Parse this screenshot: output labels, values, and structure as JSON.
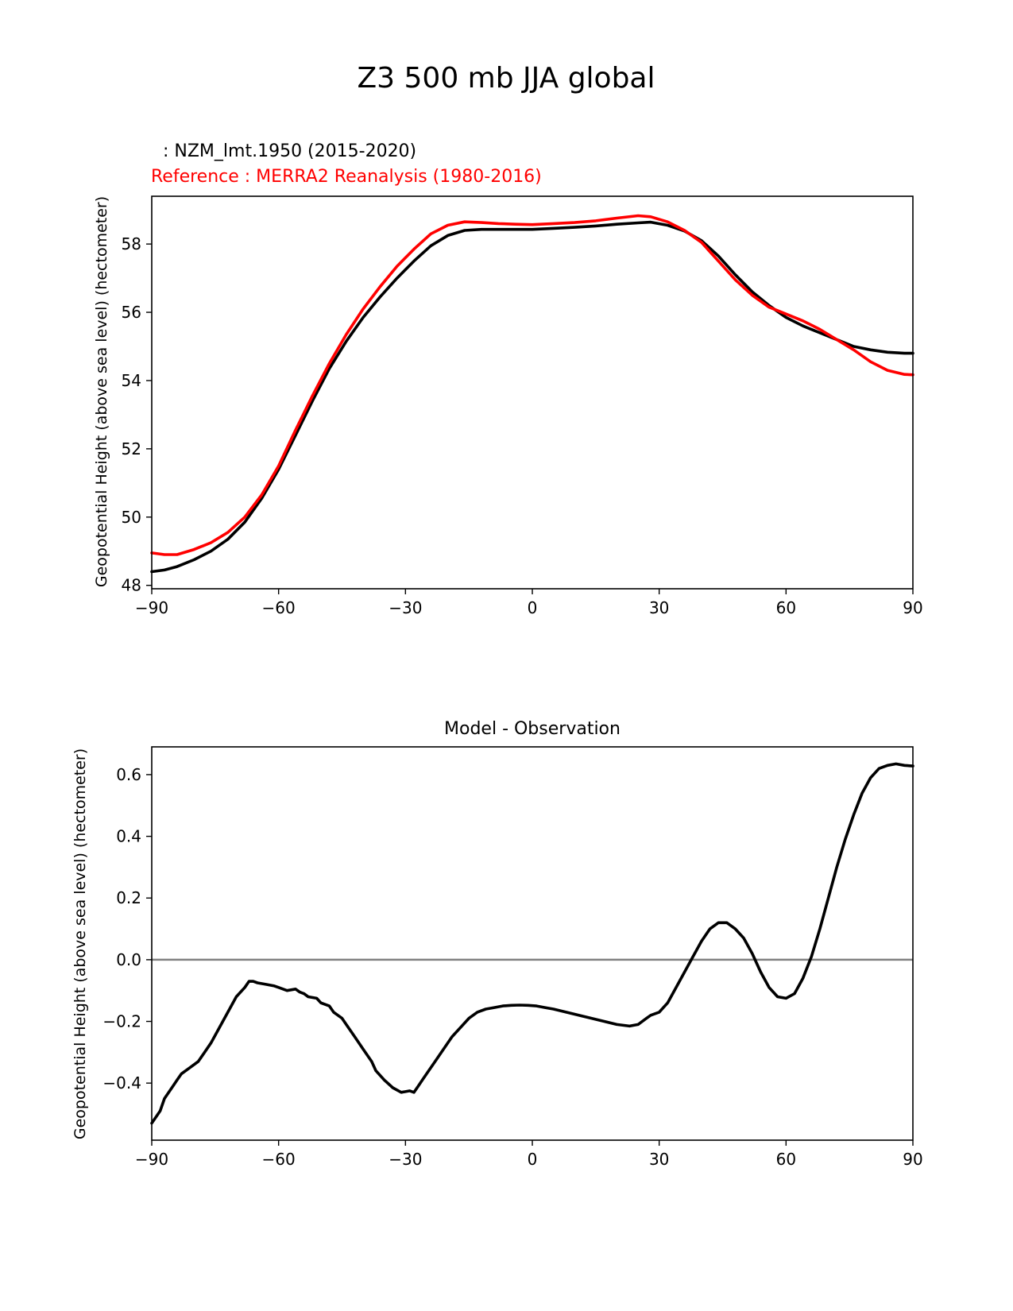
{
  "figure": {
    "suptitle": "Z3 500 mb JJA global"
  },
  "chart_data": [
    {
      "type": "line",
      "test_label": ": NZM_lmt.1950 (2015-2020)",
      "reference_label": "Reference : MERRA2 Reanalysis (1980-2016)",
      "xlabel": "",
      "ylabel": "Geopotential Height (above sea level) (hectometer)",
      "xlim": [
        -90,
        90
      ],
      "ylim": [
        47.9,
        59.4
      ],
      "xticks": [
        -90,
        -60,
        -30,
        0,
        30,
        60,
        90
      ],
      "xtick_labels": [
        "−90",
        "−60",
        "−30",
        "0",
        "30",
        "60",
        "90"
      ],
      "yticks": [
        48,
        50,
        52,
        54,
        56,
        58
      ],
      "ytick_labels": [
        "48",
        "50",
        "52",
        "54",
        "56",
        "58"
      ],
      "series": [
        {
          "name": "NZM_lmt.1950 (2015-2020)",
          "color": "#000000",
          "x": [
            -90,
            -87,
            -84,
            -80,
            -76,
            -72,
            -68,
            -64,
            -60,
            -56,
            -52,
            -48,
            -44,
            -40,
            -36,
            -32,
            -28,
            -24,
            -20,
            -16,
            -12,
            -8,
            -4,
            0,
            5,
            10,
            15,
            20,
            25,
            28,
            32,
            36,
            40,
            44,
            48,
            52,
            56,
            60,
            64,
            68,
            72,
            76,
            80,
            84,
            88,
            90
          ],
          "y": [
            48.4,
            48.45,
            48.55,
            48.75,
            49.0,
            49.35,
            49.85,
            50.55,
            51.4,
            52.4,
            53.4,
            54.35,
            55.15,
            55.85,
            56.45,
            57.0,
            57.5,
            57.95,
            58.25,
            58.4,
            58.43,
            58.43,
            58.43,
            58.43,
            58.46,
            58.49,
            58.53,
            58.58,
            58.62,
            58.64,
            58.55,
            58.38,
            58.1,
            57.65,
            57.1,
            56.6,
            56.2,
            55.85,
            55.6,
            55.4,
            55.2,
            55.0,
            54.9,
            54.83,
            54.8,
            54.8
          ]
        },
        {
          "name": "MERRA2 Reanalysis (1980-2016)",
          "color": "#ff0000",
          "x": [
            -90,
            -87,
            -84,
            -80,
            -76,
            -72,
            -68,
            -64,
            -60,
            -56,
            -52,
            -48,
            -44,
            -40,
            -36,
            -32,
            -28,
            -24,
            -20,
            -16,
            -12,
            -8,
            -4,
            0,
            5,
            10,
            15,
            20,
            25,
            28,
            32,
            36,
            40,
            44,
            48,
            52,
            56,
            60,
            64,
            68,
            72,
            76,
            80,
            84,
            88,
            90
          ],
          "y": [
            48.95,
            48.9,
            48.9,
            49.05,
            49.25,
            49.55,
            50.0,
            50.65,
            51.5,
            52.55,
            53.55,
            54.5,
            55.35,
            56.1,
            56.75,
            57.35,
            57.85,
            58.3,
            58.55,
            58.65,
            58.63,
            58.6,
            58.58,
            58.57,
            58.6,
            58.63,
            58.68,
            58.76,
            58.83,
            58.8,
            58.65,
            58.4,
            58.05,
            57.5,
            56.95,
            56.5,
            56.15,
            55.95,
            55.75,
            55.5,
            55.2,
            54.9,
            54.55,
            54.3,
            54.18,
            54.17
          ]
        }
      ]
    },
    {
      "type": "line",
      "title": "Model - Observation",
      "xlabel": "",
      "ylabel": "Geopotential Height (above sea level) (hectometer)",
      "xlim": [
        -90,
        90
      ],
      "ylim": [
        -0.585,
        0.69
      ],
      "xticks": [
        -90,
        -60,
        -30,
        0,
        30,
        60,
        90
      ],
      "xtick_labels": [
        "−90",
        "−60",
        "−30",
        "0",
        "30",
        "60",
        "90"
      ],
      "yticks": [
        -0.4,
        -0.2,
        0.0,
        0.2,
        0.4,
        0.6
      ],
      "ytick_labels": [
        "−0.4",
        "−0.2",
        "0.0",
        "0.2",
        "0.4",
        "0.6"
      ],
      "reference_line": {
        "y": 0.0,
        "color": "#808080"
      },
      "series": [
        {
          "name": "Model - Observation",
          "color": "#000000",
          "x": [
            -90,
            -88,
            -87,
            -85,
            -84,
            -83,
            -81,
            -79,
            -78,
            -76,
            -74,
            -72,
            -70,
            -68,
            -67,
            -66,
            -65,
            -63,
            -61,
            -60,
            -58,
            -56,
            -55,
            -54,
            -53,
            -51,
            -50,
            -48,
            -47,
            -45,
            -44,
            -42,
            -40,
            -38,
            -37,
            -35,
            -33,
            -31,
            -29,
            -28,
            -27,
            -26,
            -25,
            -23,
            -21,
            -19,
            -17,
            -15,
            -13,
            -11,
            -9,
            -7,
            -5,
            -3,
            -1,
            1,
            3,
            5,
            8,
            11,
            14,
            17,
            20,
            23,
            25,
            27,
            28,
            30,
            32,
            34,
            36,
            38,
            40,
            42,
            44,
            46,
            48,
            50,
            52,
            54,
            56,
            58,
            60,
            62,
            64,
            66,
            68,
            70,
            72,
            74,
            76,
            78,
            80,
            82,
            84,
            86,
            88,
            90
          ],
          "y": [
            -0.53,
            -0.49,
            -0.45,
            -0.41,
            -0.39,
            -0.37,
            -0.35,
            -0.33,
            -0.31,
            -0.27,
            -0.22,
            -0.17,
            -0.12,
            -0.09,
            -0.07,
            -0.07,
            -0.075,
            -0.08,
            -0.085,
            -0.09,
            -0.1,
            -0.095,
            -0.105,
            -0.11,
            -0.12,
            -0.125,
            -0.14,
            -0.15,
            -0.17,
            -0.19,
            -0.21,
            -0.25,
            -0.29,
            -0.33,
            -0.36,
            -0.39,
            -0.415,
            -0.43,
            -0.425,
            -0.43,
            -0.41,
            -0.39,
            -0.37,
            -0.33,
            -0.29,
            -0.25,
            -0.22,
            -0.19,
            -0.17,
            -0.16,
            -0.155,
            -0.15,
            -0.148,
            -0.147,
            -0.148,
            -0.15,
            -0.155,
            -0.16,
            -0.17,
            -0.18,
            -0.19,
            -0.2,
            -0.21,
            -0.215,
            -0.21,
            -0.19,
            -0.18,
            -0.17,
            -0.14,
            -0.09,
            -0.04,
            0.01,
            0.06,
            0.1,
            0.12,
            0.12,
            0.1,
            0.07,
            0.02,
            -0.04,
            -0.09,
            -0.12,
            -0.125,
            -0.11,
            -0.06,
            0.01,
            0.1,
            0.2,
            0.3,
            0.39,
            0.47,
            0.54,
            0.59,
            0.62,
            0.63,
            0.635,
            0.63,
            0.628
          ]
        }
      ]
    }
  ]
}
